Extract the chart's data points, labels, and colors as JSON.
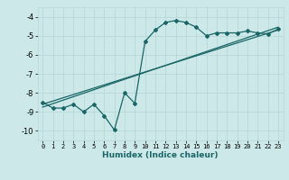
{
  "xlabel": "Humidex (Indice chaleur)",
  "ylabel": "",
  "background_color": "#cce8e8",
  "grid_color": "#b8d8d8",
  "line_color": "#1a6666",
  "xlim": [
    -0.5,
    23.5
  ],
  "ylim": [
    -10.5,
    -3.5
  ],
  "yticks": [
    -10,
    -9,
    -8,
    -7,
    -6,
    -5,
    -4
  ],
  "xticks": [
    0,
    1,
    2,
    3,
    4,
    5,
    6,
    7,
    8,
    9,
    10,
    11,
    12,
    13,
    14,
    15,
    16,
    17,
    18,
    19,
    20,
    21,
    22,
    23
  ],
  "x_data": [
    0,
    1,
    2,
    3,
    4,
    5,
    6,
    7,
    8,
    9,
    10,
    11,
    12,
    13,
    14,
    15,
    16,
    17,
    18,
    19,
    20,
    21,
    22,
    23
  ],
  "y_data": [
    -8.5,
    -8.8,
    -8.8,
    -8.6,
    -9.0,
    -8.6,
    -9.2,
    -9.95,
    -8.0,
    -8.55,
    -5.3,
    -4.7,
    -4.3,
    -4.2,
    -4.3,
    -4.55,
    -5.0,
    -4.85,
    -4.85,
    -4.85,
    -4.75,
    -4.85,
    -4.9,
    -4.65
  ],
  "trend1_x": [
    0,
    23
  ],
  "trend1_y": [
    -8.6,
    -4.7
  ],
  "trend2_x": [
    0,
    23
  ],
  "trend2_y": [
    -8.75,
    -4.55
  ]
}
